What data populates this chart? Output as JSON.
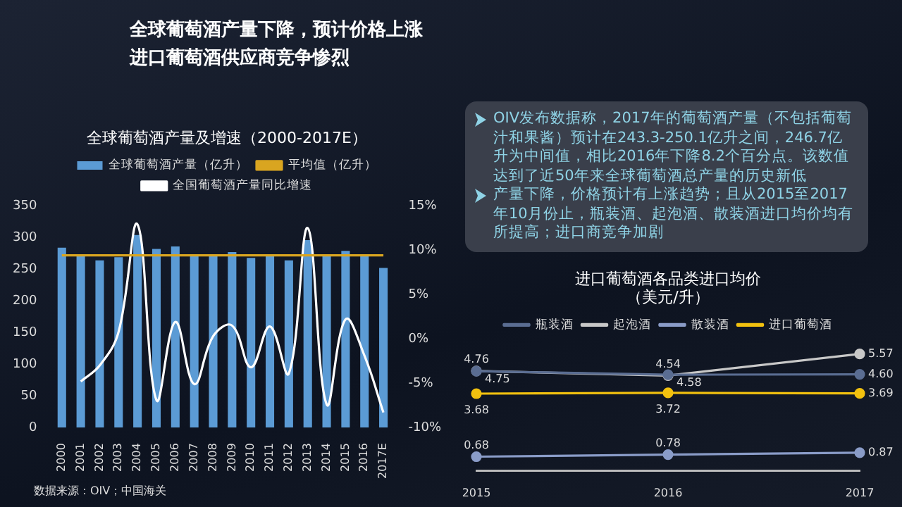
{
  "chart_data": [
    {
      "type": "other",
      "title": "全球葡萄酒产量下降，预计价格上涨",
      "subtitle": "进口葡萄酒供应商竞争惨烈"
    },
    {
      "type": "bar",
      "title": "全球葡萄酒产量及增速（2000-2017E）",
      "categories": [
        "2000",
        "2001",
        "2002",
        "2003",
        "2004",
        "2005",
        "2006",
        "2007",
        "2008",
        "2009",
        "2010",
        "2011",
        "2012",
        "2013",
        "2014",
        "2015",
        "2016",
        "2017E"
      ],
      "series": [
        {
          "type": "bar",
          "name": "全球葡萄酒产量（亿升）",
          "color": "#5b9bd5",
          "values": [
            284,
            272,
            264,
            269,
            304,
            282,
            286,
            272,
            272,
            277,
            268,
            272,
            264,
            296,
            272,
            279,
            272,
            252
          ]
        },
        {
          "type": "line",
          "name": "平均值（亿升）",
          "color": "#d9a520",
          "values": [
            272,
            272,
            272,
            272,
            272,
            272,
            272,
            272,
            272,
            272,
            272,
            272,
            272,
            272,
            272,
            272,
            272,
            272
          ]
        },
        {
          "type": "line",
          "name": "全国葡萄酒产量同比增速",
          "color": "#ffffff",
          "axis": "y2",
          "values": [
            null,
            -4.8,
            -3.0,
            0.8,
            12.9,
            -6.9,
            1.9,
            -5.1,
            0.3,
            1.5,
            -3.2,
            1.4,
            -3.9,
            12.5,
            -7.4,
            2.2,
            -1.9,
            -8.3
          ]
        }
      ],
      "ylim": [
        0,
        350
      ],
      "yticks": [
        0,
        50,
        100,
        150,
        200,
        250,
        300,
        350
      ],
      "y2lim": [
        -10,
        15
      ],
      "y2ticks": [
        {
          "value": -10,
          "label": "-10%"
        },
        {
          "value": -5,
          "label": "-5%"
        },
        {
          "value": 0,
          "label": "0%"
        },
        {
          "value": 5,
          "label": "5%"
        },
        {
          "value": 10,
          "label": "10%"
        },
        {
          "value": 15,
          "label": "15%"
        }
      ],
      "grid": false,
      "legend": "top",
      "marker": "none",
      "annotations": [
        "数据来源：OIV；中国海关"
      ]
    },
    {
      "type": "other",
      "annotations": [
        "OIV发布数据称，2017年的葡萄酒产量（不包括葡萄汁和果酱）预计在243.3-250.1亿升之间，246.7亿升为中间值，相比2016年下降8.2个百分点。该数值达到了近50年来全球葡萄酒总产量的历史新低",
        "产量下降，价格预计有上涨趋势；且从2015至2017年10月份止，瓶装酒、起泡酒、散装酒进口均价均有所提高；进口商竞争加剧"
      ]
    },
    {
      "type": "line",
      "title": "进口葡萄酒各品类进口均价",
      "subtitle": "（美元/升）",
      "categories": [
        "2015",
        "2016",
        "2017"
      ],
      "series": [
        {
          "name": "瓶装酒",
          "color": "#5a6d92",
          "values": [
            4.75,
            4.58,
            4.6
          ],
          "value_labels": [
            "4.75",
            "4.58",
            "4.60"
          ]
        },
        {
          "name": "起泡酒",
          "color": "#c8c8c8",
          "values": [
            4.76,
            4.54,
            5.57
          ],
          "value_labels": [
            "4.76",
            "4.54",
            "5.57"
          ]
        },
        {
          "name": "散装酒",
          "color": "#8a9cc8",
          "values": [
            0.68,
            0.78,
            0.87
          ],
          "value_labels": [
            "0.68",
            "0.78",
            "0.87"
          ]
        },
        {
          "name": "进口葡萄酒",
          "color": "#f2c10f",
          "values": [
            3.68,
            3.72,
            3.69
          ],
          "value_labels": [
            "3.68",
            "3.72",
            "3.69"
          ]
        }
      ],
      "legend": "top",
      "marker": "circle",
      "grid": false,
      "tick_labels": "x"
    }
  ]
}
